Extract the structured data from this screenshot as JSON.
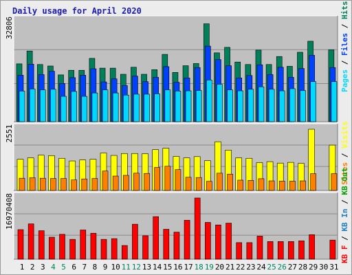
{
  "title": "Daily usage for April 2020",
  "colors": {
    "hits": "#00805a",
    "files": "#0040ff",
    "pages": "#00d8ff",
    "visits": "#ffff00",
    "sites": "#ff8000",
    "kb_in": "#2080c0",
    "kb_out": "#00a000",
    "kb_f": "#ff0000"
  },
  "chart_data": [
    {
      "type": "bar",
      "title": "Daily usage for April 2020",
      "panel": "hits_files_pages",
      "ymax_label": "32806",
      "ylim": [
        0,
        32806
      ],
      "grid": true,
      "legend": [
        "Pages",
        "Files",
        "Hits"
      ],
      "categories": [
        "1",
        "2",
        "3",
        "4",
        "5",
        "6",
        "7",
        "8",
        "9",
        "10",
        "11",
        "12",
        "13",
        "14",
        "15",
        "16",
        "17",
        "18",
        "19",
        "20",
        "21",
        "22",
        "23",
        "24",
        "25",
        "26",
        "27",
        "28",
        "29",
        "30",
        "31"
      ],
      "weekend_days": [
        "4",
        "5",
        "11",
        "12",
        "18",
        "19",
        "25",
        "26"
      ],
      "series": [
        {
          "name": "Hits",
          "values": [
            18900,
            23100,
            18700,
            18200,
            15300,
            16800,
            16800,
            20700,
            17500,
            17500,
            15500,
            17800,
            15500,
            17000,
            22000,
            16100,
            18300,
            19000,
            32000,
            22500,
            24300,
            19500,
            18700,
            23400,
            18700,
            21300,
            18100,
            22700,
            26300,
            0,
            23500
          ]
        },
        {
          "name": "Files",
          "values": [
            15200,
            18800,
            15400,
            16500,
            12500,
            14400,
            15200,
            17300,
            13000,
            14000,
            11800,
            14900,
            13100,
            14500,
            18000,
            12900,
            14300,
            17700,
            24700,
            20300,
            18300,
            14300,
            15100,
            18600,
            15400,
            17800,
            14500,
            17400,
            21700,
            0,
            17700
          ]
        },
        {
          "name": "Pages",
          "values": [
            10000,
            10700,
            10400,
            10600,
            8300,
            9900,
            8300,
            9400,
            10400,
            9400,
            8700,
            9000,
            9000,
            9100,
            10400,
            10000,
            10100,
            10200,
            13600,
            12200,
            10400,
            10100,
            10600,
            11400,
            10600,
            10100,
            10800,
            10200,
            13100,
            0,
            13100
          ]
        }
      ]
    },
    {
      "type": "bar",
      "panel": "visits_sites",
      "ymax_label": "2551",
      "ylim": [
        0,
        2551
      ],
      "grid": true,
      "legend": [
        "Sites",
        "Visits"
      ],
      "categories": [
        "1",
        "2",
        "3",
        "4",
        "5",
        "6",
        "7",
        "8",
        "9",
        "10",
        "11",
        "12",
        "13",
        "14",
        "15",
        "16",
        "17",
        "18",
        "19",
        "20",
        "21",
        "22",
        "23",
        "24",
        "25",
        "26",
        "27",
        "28",
        "29",
        "30",
        "31"
      ],
      "series": [
        {
          "name": "Visits",
          "values": [
            1300,
            1360,
            1470,
            1450,
            1340,
            1230,
            1270,
            1300,
            1560,
            1460,
            1540,
            1540,
            1530,
            1700,
            1760,
            1420,
            1360,
            1410,
            1240,
            2030,
            1680,
            1360,
            1340,
            1160,
            1200,
            1140,
            1170,
            1130,
            2551,
            0,
            1890
          ]
        },
        {
          "name": "Sites",
          "values": [
            510,
            530,
            510,
            500,
            500,
            440,
            480,
            500,
            810,
            600,
            630,
            720,
            710,
            960,
            1010,
            870,
            550,
            540,
            380,
            720,
            680,
            430,
            420,
            490,
            400,
            390,
            390,
            400,
            700,
            0,
            700
          ]
        }
      ]
    },
    {
      "type": "bar",
      "panel": "kbytes",
      "ymax_label": "16970408",
      "ylim": [
        0,
        16970408
      ],
      "grid": true,
      "legend": [
        "KB F",
        "KB In",
        "KB Out"
      ],
      "categories": [
        "1",
        "2",
        "3",
        "4",
        "5",
        "6",
        "7",
        "8",
        "9",
        "10",
        "11",
        "12",
        "13",
        "14",
        "15",
        "16",
        "17",
        "18",
        "19",
        "20",
        "21",
        "22",
        "23",
        "24",
        "25",
        "26",
        "27",
        "28",
        "29",
        "30",
        "31"
      ],
      "series": [
        {
          "name": "KB F",
          "values": [
            8200000,
            9800000,
            7900000,
            6100000,
            6900000,
            5500000,
            8100000,
            7200000,
            5500000,
            5700000,
            3800000,
            9700000,
            6500000,
            11800000,
            8300000,
            7500000,
            10800000,
            16970000,
            10200000,
            9500000,
            10000000,
            4600000,
            4600000,
            6400000,
            4900000,
            4900000,
            4900000,
            5100000,
            6800000,
            0,
            5300000
          ]
        }
      ]
    }
  ],
  "right_labels": {
    "top": [
      "Pages",
      "Files",
      "Hits"
    ],
    "mid": [
      "Sites",
      "Visits"
    ],
    "bot": [
      "KB F",
      "KB In",
      "KB Out"
    ]
  }
}
